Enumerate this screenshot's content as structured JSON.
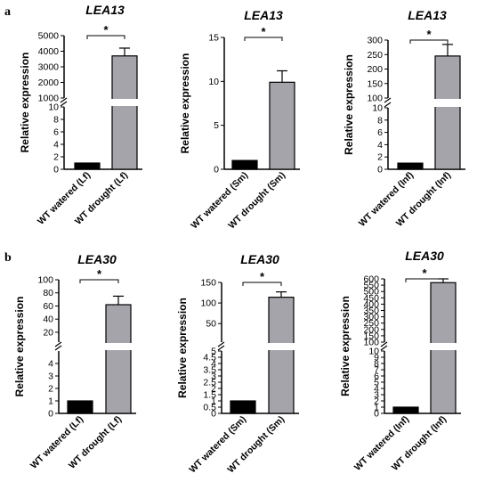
{
  "panels": [
    {
      "letter": "a"
    },
    {
      "letter": "b"
    }
  ],
  "chart_data": [
    {
      "type": "bar",
      "title": "LEA13",
      "ylabel": "Relative expression",
      "categories": [
        "WT watered (Lf)",
        "WT drought (Lf)"
      ],
      "values": [
        1,
        3700
      ],
      "errors": [
        0,
        500
      ],
      "bar_colors": [
        "#000000",
        "#a6a4ab"
      ],
      "axis_segments": [
        {
          "range": [
            0,
            10
          ],
          "ticks": [
            "0",
            "2",
            "4",
            "6",
            "8",
            "10"
          ]
        },
        {
          "range": [
            1000,
            5000
          ],
          "ticks": [
            "1000",
            "2000",
            "3000",
            "4000",
            "5000"
          ]
        }
      ],
      "significance": "*"
    },
    {
      "type": "bar",
      "title": "LEA13",
      "ylabel": "Relative expression",
      "categories": [
        "WT watered (Sm)",
        "WT drought (Sm)"
      ],
      "values": [
        1,
        9.9
      ],
      "errors": [
        0,
        1.3
      ],
      "bar_colors": [
        "#000000",
        "#a6a4ab"
      ],
      "axis_segments": [
        {
          "range": [
            0,
            15
          ],
          "ticks": [
            "0",
            "5",
            "10",
            "15"
          ]
        }
      ],
      "significance": "*"
    },
    {
      "type": "bar",
      "title": "LEA13",
      "ylabel": "Relative expression",
      "categories": [
        "WT watered (Inf)",
        "WT drought (Inf)"
      ],
      "values": [
        1,
        245
      ],
      "errors": [
        0,
        40
      ],
      "bar_colors": [
        "#000000",
        "#a6a4ab"
      ],
      "axis_segments": [
        {
          "range": [
            0,
            10
          ],
          "ticks": [
            "0",
            "2",
            "4",
            "6",
            "8",
            "10"
          ]
        },
        {
          "range": [
            100,
            300
          ],
          "ticks": [
            "100",
            "150",
            "200",
            "250",
            "300"
          ]
        }
      ],
      "significance": "*"
    },
    {
      "type": "bar",
      "title": "LEA30",
      "ylabel": "Relative expression",
      "categories": [
        "WT watered (Lf)",
        "WT drought (Lf)"
      ],
      "values": [
        1,
        62
      ],
      "errors": [
        0,
        13
      ],
      "bar_colors": [
        "#000000",
        "#a6a4ab"
      ],
      "axis_segments": [
        {
          "range": [
            0,
            5
          ],
          "ticks": [
            "0",
            "1",
            "2",
            "3",
            "4"
          ]
        },
        {
          "range": [
            5,
            100
          ],
          "ticks": [
            "20",
            "40",
            "60",
            "80",
            "100"
          ]
        }
      ],
      "significance": "*"
    },
    {
      "type": "bar",
      "title": "LEA30",
      "ylabel": "Relative expression",
      "categories": [
        "WT watered (Sm)",
        "WT drought (Sm)"
      ],
      "values": [
        1,
        114
      ],
      "errors": [
        0,
        13
      ],
      "bar_colors": [
        "#000000",
        "#a6a4ab"
      ],
      "axis_segments": [
        {
          "range": [
            0,
            5
          ],
          "ticks": [
            "0",
            "0.5",
            "1",
            "1.5",
            "2",
            "2.5",
            "3",
            "3.5",
            "4",
            "4.5",
            "5"
          ]
        },
        {
          "range": [
            5,
            150
          ],
          "ticks": [
            "50",
            "100",
            "150"
          ]
        }
      ],
      "significance": "*"
    },
    {
      "type": "bar",
      "title": "LEA30",
      "ylabel": "Relative expression",
      "categories": [
        "WT watered (Inf)",
        "WT drought (Inf)"
      ],
      "values": [
        1,
        570
      ],
      "errors": [
        0,
        30
      ],
      "bar_colors": [
        "#000000",
        "#a6a4ab"
      ],
      "axis_segments": [
        {
          "range": [
            0,
            10
          ],
          "ticks": [
            "0",
            "1",
            "2",
            "3",
            "4",
            "5",
            "6",
            "7",
            "8",
            "9",
            "10"
          ]
        },
        {
          "range": [
            100,
            600
          ],
          "ticks": [
            "100",
            "150",
            "200",
            "250",
            "300",
            "350",
            "400",
            "450",
            "500",
            "550",
            "600"
          ]
        }
      ],
      "significance": "*"
    }
  ]
}
